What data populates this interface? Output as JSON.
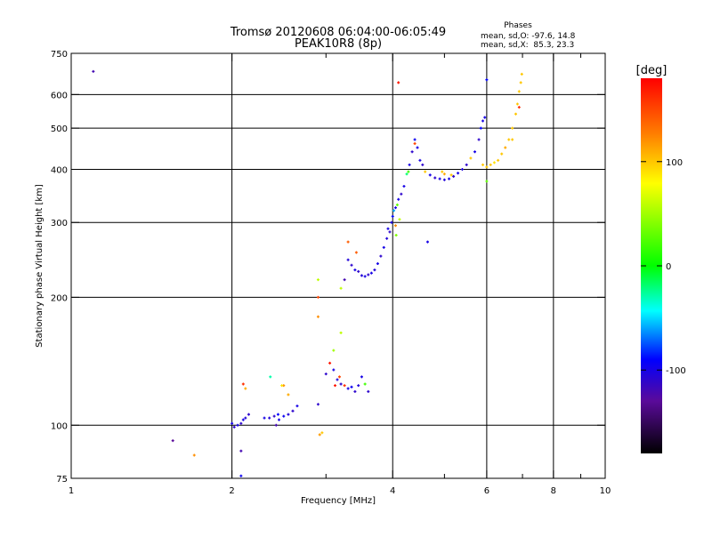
{
  "chart_data": {
    "type": "scatter",
    "title": "Tromsø 20120608 06:04:00-06:05:49",
    "subtitle": "PEAK10R8 (8p)",
    "stats": {
      "heading": "Phases",
      "line1": "mean, sd,O: -97.6, 14.8",
      "line2": "mean, sd,X:  85.3, 23.3"
    },
    "xlabel": "Frequency [MHz]",
    "ylabel": "Stationary phase Virtual Height [km]",
    "x_scale": "log",
    "y_scale": "log",
    "xlim": [
      1,
      10
    ],
    "ylim": [
      75,
      750
    ],
    "x_ticks": [
      {
        "value": 1,
        "label": "1"
      },
      {
        "value": 2,
        "label": "2"
      },
      {
        "value": 4,
        "label": "4"
      },
      {
        "value": 6,
        "label": "6"
      },
      {
        "value": 8,
        "label": "8"
      },
      {
        "value": 10,
        "label": "10"
      }
    ],
    "x_minor_ticks": [
      3,
      5,
      7,
      9
    ],
    "x_grid": [
      2,
      4,
      6,
      8
    ],
    "y_ticks": [
      {
        "value": 75,
        "label": "75"
      },
      {
        "value": 100,
        "label": "100"
      },
      {
        "value": 200,
        "label": "200"
      },
      {
        "value": 300,
        "label": "300"
      },
      {
        "value": 400,
        "label": "400"
      },
      {
        "value": 500,
        "label": "500"
      },
      {
        "value": 600,
        "label": "600"
      },
      {
        "value": 750,
        "label": "750"
      }
    ],
    "y_grid": [
      100,
      200,
      300,
      400,
      500,
      600
    ],
    "grid": true,
    "colorbar": {
      "label": "[deg]",
      "min": -180,
      "max": 180,
      "ticks": [
        {
          "value": 100,
          "label": "100"
        },
        {
          "value": 0,
          "label": "0"
        },
        {
          "value": -100,
          "label": "-100"
        }
      ]
    },
    "x": [
      1.1,
      1.55,
      1.7,
      2.0,
      2.02,
      2.05,
      2.08,
      2.1,
      2.12,
      2.15,
      2.08,
      2.1,
      2.12,
      2.08,
      2.3,
      2.35,
      2.4,
      2.45,
      2.5,
      2.55,
      2.6,
      2.65,
      2.42,
      2.44,
      2.36,
      2.5,
      2.48,
      2.55,
      2.9,
      2.9,
      2.9,
      2.9,
      2.92,
      3.0,
      3.05,
      3.1,
      3.15,
      3.2,
      3.25,
      3.3,
      3.35,
      3.4,
      3.45,
      3.5,
      3.55,
      3.6,
      3.1,
      3.2,
      3.12,
      3.18,
      2.95,
      3.2,
      3.3,
      3.35,
      3.4,
      3.45,
      3.5,
      3.55,
      3.6,
      3.65,
      3.7,
      3.75,
      3.8,
      3.85,
      3.9,
      3.95,
      3.3,
      3.42,
      3.25,
      3.92,
      3.98,
      4.0,
      4.02,
      4.05,
      4.08,
      4.1,
      4.15,
      4.2,
      4.25,
      4.3,
      4.35,
      4.4,
      4.45,
      4.5,
      4.55,
      4.05,
      4.12,
      4.28,
      4.4,
      4.06,
      4.6,
      4.7,
      4.8,
      4.9,
      5.0,
      5.1,
      5.2,
      5.3,
      5.4,
      5.5,
      5.6,
      5.7,
      5.8,
      5.85,
      5.9,
      5.95,
      4.95,
      5.15,
      5.0,
      4.65,
      5.9,
      6.0,
      6.1,
      6.2,
      6.3,
      6.4,
      6.5,
      6.6,
      6.7,
      6.8,
      6.85,
      6.9,
      6.95,
      6.98,
      6.7,
      6.9,
      4.1,
      6.0,
      6.0
    ],
    "y": [
      680,
      92,
      85,
      101,
      99,
      100,
      101,
      103,
      104,
      106,
      87,
      125,
      122,
      76,
      104,
      104,
      105,
      103,
      105,
      106,
      108,
      111,
      100,
      106,
      130,
      124,
      124,
      118,
      180,
      220,
      200,
      112,
      95,
      132,
      140,
      135,
      128,
      125,
      124,
      122,
      123,
      120,
      124,
      130,
      125,
      120,
      150,
      165,
      124,
      130,
      96,
      210,
      245,
      238,
      232,
      230,
      225,
      224,
      226,
      228,
      232,
      240,
      250,
      262,
      275,
      285,
      270,
      255,
      220,
      290,
      300,
      310,
      320,
      325,
      330,
      340,
      350,
      365,
      390,
      410,
      440,
      470,
      450,
      420,
      410,
      295,
      305,
      395,
      460,
      280,
      395,
      388,
      382,
      380,
      378,
      380,
      385,
      392,
      400,
      410,
      425,
      440,
      470,
      500,
      520,
      530,
      395,
      388,
      390,
      270,
      410,
      405,
      410,
      415,
      420,
      435,
      450,
      470,
      500,
      540,
      570,
      610,
      640,
      670,
      470,
      560,
      640,
      650,
      375
    ],
    "phase_deg": [
      -120,
      -130,
      120,
      -100,
      -110,
      -100,
      -110,
      -100,
      -105,
      -110,
      -120,
      160,
      110,
      -95,
      -100,
      -105,
      -110,
      -100,
      -95,
      -105,
      -110,
      -100,
      -120,
      -90,
      -30,
      120,
      90,
      110,
      120,
      60,
      150,
      -110,
      115,
      -110,
      170,
      -100,
      -105,
      -110,
      160,
      -100,
      -95,
      -110,
      -105,
      -100,
      20,
      -110,
      50,
      60,
      170,
      150,
      100,
      60,
      -105,
      -110,
      -100,
      -110,
      -105,
      -100,
      -110,
      -100,
      -105,
      -100,
      -110,
      -100,
      -105,
      -110,
      140,
      140,
      -120,
      -100,
      -100,
      -90,
      -60,
      -100,
      30,
      -100,
      -110,
      -100,
      -20,
      -100,
      -110,
      -95,
      -100,
      -100,
      -110,
      120,
      60,
      20,
      150,
      40,
      100,
      -100,
      -110,
      -100,
      -105,
      -100,
      -110,
      -100,
      -105,
      -110,
      100,
      -100,
      -110,
      -90,
      -100,
      -100,
      100,
      100,
      110,
      -100,
      100,
      100,
      100,
      90,
      100,
      100,
      110,
      100,
      100,
      100,
      100,
      100,
      100,
      100,
      100,
      160,
      170,
      -90,
      30
    ]
  }
}
